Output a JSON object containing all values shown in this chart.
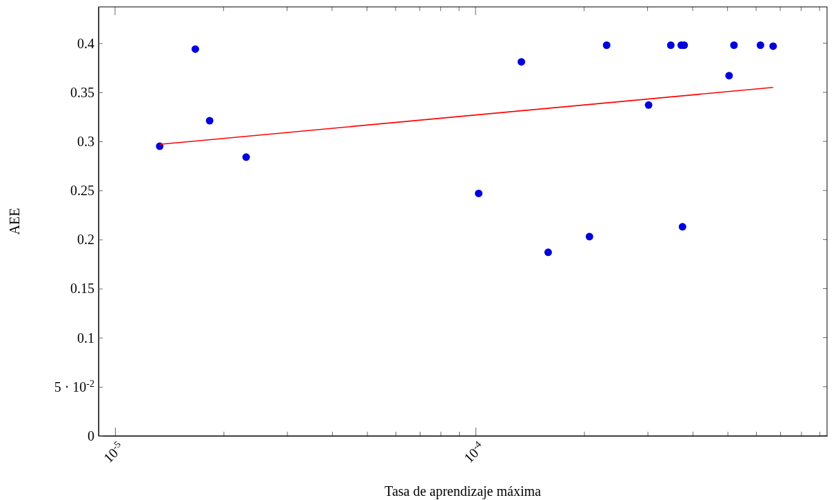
{
  "chart_data": {
    "type": "scatter",
    "xlabel": "Tasa de aprendizaje máxima",
    "ylabel": "AEE",
    "log": "x",
    "grid": false,
    "marker": "circle",
    "xlim": [
      9e-06,
      0.000944
    ],
    "ylim": [
      0,
      0.437
    ],
    "xticks": [
      {
        "value": 1e-05,
        "label": "10$^{-5}$"
      },
      {
        "value": 2e-05,
        "label": null
      },
      {
        "value": 3e-05,
        "label": null
      },
      {
        "value": 4e-05,
        "label": null
      },
      {
        "value": 5e-05,
        "label": null
      },
      {
        "value": 6e-05,
        "label": null
      },
      {
        "value": 7e-05,
        "label": null
      },
      {
        "value": 8e-05,
        "label": null
      },
      {
        "value": 9e-05,
        "label": null
      },
      {
        "value": 0.0001,
        "label": "10$^{-4}$"
      },
      {
        "value": 0.0002,
        "label": null
      },
      {
        "value": 0.0003,
        "label": null
      },
      {
        "value": 0.0004,
        "label": null
      },
      {
        "value": 0.0005,
        "label": null
      },
      {
        "value": 0.0006,
        "label": null
      },
      {
        "value": 0.0007,
        "label": null
      },
      {
        "value": 0.0008,
        "label": null
      },
      {
        "value": 0.0009,
        "label": null
      }
    ],
    "yticks": [
      0,
      {
        "value": 0.05,
        "label": "5 · 10$^{-2}$"
      },
      0.1,
      0.15,
      0.2,
      0.25,
      0.3,
      0.35,
      0.4
    ],
    "series": [
      {
        "color": "#0000dd",
        "x": [
          1.33e-05,
          1.67e-05,
          1.83e-05,
          2.31e-05,
          0.000102,
          0.000134,
          0.000159,
          0.000207,
          0.000231,
          0.000302,
          0.000348,
          0.000372,
          0.000379,
          0.000375,
          0.000505,
          0.000521,
          0.000617,
          0.000669
        ],
        "values": [
          0.295,
          0.394,
          0.321,
          0.284,
          0.247,
          0.381,
          0.187,
          0.203,
          0.398,
          0.337,
          0.398,
          0.398,
          0.398,
          0.213,
          0.367,
          0.398,
          0.398,
          0.397
        ]
      },
      {
        "type": "line",
        "color": "#ff0000",
        "marker": "none",
        "x": [
          1.33e-05,
          0.000669
        ],
        "values": [
          0.297,
          0.355
        ]
      }
    ]
  }
}
